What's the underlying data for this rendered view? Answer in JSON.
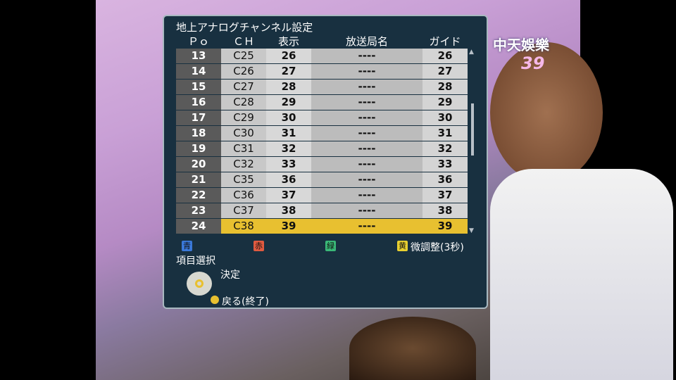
{
  "panel": {
    "title": "地上アナログチャンネル設定",
    "headers": [
      "Ｐｏ",
      "ＣＨ",
      "表示",
      "放送局名",
      "ガイド"
    ],
    "rows": [
      {
        "po": "13",
        "ch": "C25",
        "disp": "26",
        "name": "----",
        "guide": "26"
      },
      {
        "po": "14",
        "ch": "C26",
        "disp": "27",
        "name": "----",
        "guide": "27"
      },
      {
        "po": "15",
        "ch": "C27",
        "disp": "28",
        "name": "----",
        "guide": "28"
      },
      {
        "po": "16",
        "ch": "C28",
        "disp": "29",
        "name": "----",
        "guide": "29"
      },
      {
        "po": "17",
        "ch": "C29",
        "disp": "30",
        "name": "----",
        "guide": "30"
      },
      {
        "po": "18",
        "ch": "C30",
        "disp": "31",
        "name": "----",
        "guide": "31"
      },
      {
        "po": "19",
        "ch": "C31",
        "disp": "32",
        "name": "----",
        "guide": "32"
      },
      {
        "po": "20",
        "ch": "C32",
        "disp": "33",
        "name": "----",
        "guide": "33"
      },
      {
        "po": "21",
        "ch": "C35",
        "disp": "36",
        "name": "----",
        "guide": "36"
      },
      {
        "po": "22",
        "ch": "C36",
        "disp": "37",
        "name": "----",
        "guide": "37"
      },
      {
        "po": "23",
        "ch": "C37",
        "disp": "38",
        "name": "----",
        "guide": "38"
      },
      {
        "po": "24",
        "ch": "C38",
        "disp": "39",
        "name": "----",
        "guide": "39"
      }
    ],
    "selected_index": 11,
    "color_keys": [
      {
        "label": "青",
        "color": "#3a78d8"
      },
      {
        "label": "赤",
        "color": "#e05a40"
      },
      {
        "label": "緑",
        "color": "#3ab878"
      },
      {
        "label": "黄",
        "color": "#e8d030"
      }
    ],
    "yellow_action": "微調整(3秒)",
    "nav": {
      "select": "項目選択",
      "enter": "決定",
      "back": "戻る(終了)"
    }
  },
  "tv": {
    "logo": "中天娛樂",
    "channel": "39"
  }
}
